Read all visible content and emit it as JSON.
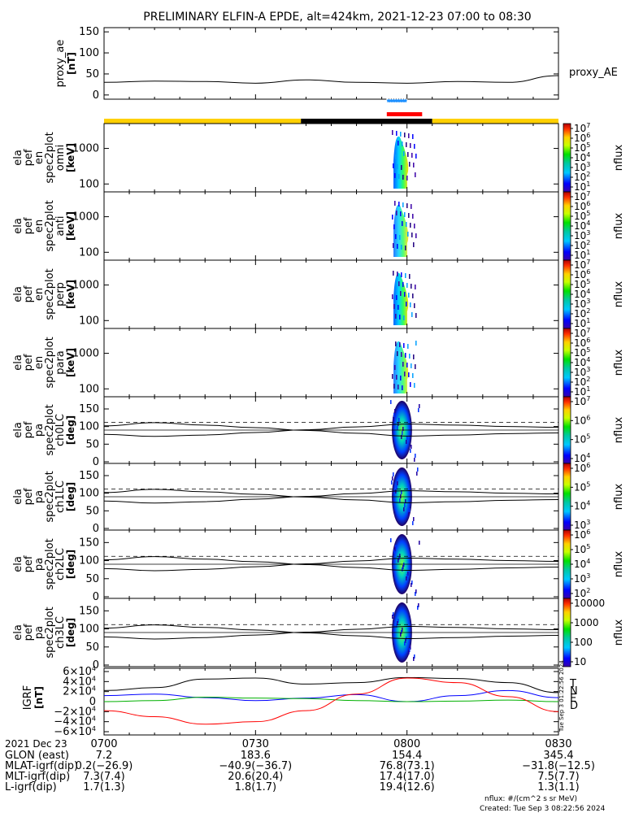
{
  "title": "PRELIMINARY ELFIN-A EPDE, alt=424km, 2021-12-23 07:00 to 08:30",
  "proxy_ae": {
    "ylabel": "proxy_ae",
    "yunit": "[nT]",
    "legend": "proxy_AE",
    "yticks": [
      "150",
      "100",
      "50",
      "0"
    ],
    "ylim": [
      -10,
      160
    ]
  },
  "energy_panels": [
    {
      "ylabel": [
        "ela",
        "pef",
        "en",
        "spec2plot",
        "omni"
      ],
      "yunit": "[keV]",
      "yticks": [
        "1000",
        "100"
      ]
    },
    {
      "ylabel": [
        "ela",
        "pef",
        "en",
        "spec2plot",
        "anti"
      ],
      "yunit": "[keV]",
      "yticks": [
        "1000",
        "100"
      ]
    },
    {
      "ylabel": [
        "ela",
        "pef",
        "en",
        "spec2plot",
        "perp"
      ],
      "yunit": "[keV]",
      "yticks": [
        "1000",
        "100"
      ]
    },
    {
      "ylabel": [
        "ela",
        "pef",
        "en",
        "spec2plot",
        "para"
      ],
      "yunit": "[keV]",
      "yticks": [
        "1000",
        "100"
      ]
    }
  ],
  "pa_panels": [
    {
      "ylabel": [
        "ela",
        "pef",
        "pa",
        "spec2plot",
        "ch0LC"
      ],
      "yunit": "[deg]",
      "yticks": [
        "150",
        "100",
        "50",
        "0"
      ]
    },
    {
      "ylabel": [
        "ela",
        "pef",
        "pa",
        "spec2plot",
        "ch1LC"
      ],
      "yunit": "[deg]",
      "yticks": [
        "150",
        "100",
        "50",
        "0"
      ]
    },
    {
      "ylabel": [
        "ela",
        "pef",
        "pa",
        "spec2plot",
        "ch2LC"
      ],
      "yunit": "[deg]",
      "yticks": [
        "150",
        "100",
        "50",
        "0"
      ]
    },
    {
      "ylabel": [
        "ela",
        "pef",
        "pa",
        "spec2plot",
        "ch3LC"
      ],
      "yunit": "[deg]",
      "yticks": [
        "150",
        "100",
        "50",
        "0"
      ]
    }
  ],
  "colorbars": [
    {
      "label": "nflux",
      "ticks": [
        "10",
        "10",
        "10",
        "10",
        "10",
        "10",
        "10"
      ],
      "exps": [
        "7",
        "6",
        "5",
        "4",
        "3",
        "2",
        "1"
      ]
    },
    {
      "label": "nflux",
      "ticks": [
        "10",
        "10",
        "10",
        "10",
        "10",
        "10",
        "10"
      ],
      "exps": [
        "7",
        "6",
        "5",
        "4",
        "3",
        "2",
        "1"
      ]
    },
    {
      "label": "nflux",
      "ticks": [
        "10",
        "10",
        "10",
        "10",
        "10",
        "10",
        "10"
      ],
      "exps": [
        "7",
        "6",
        "5",
        "4",
        "3",
        "2",
        "1"
      ]
    },
    {
      "label": "nflux",
      "ticks": [
        "10",
        "10",
        "10",
        "10",
        "10",
        "10",
        "10"
      ],
      "exps": [
        "7",
        "6",
        "5",
        "4",
        "3",
        "2",
        "1"
      ]
    },
    {
      "label": "nflux",
      "ticks": [
        "10",
        "10",
        "10",
        "10"
      ],
      "exps": [
        "7",
        "6",
        "5",
        "4"
      ]
    },
    {
      "label": "nflux",
      "ticks": [
        "10",
        "10",
        "10",
        "10"
      ],
      "exps": [
        "6",
        "5",
        "4",
        "3"
      ]
    },
    {
      "label": "nflux",
      "ticks": [
        "10",
        "10",
        "10",
        "10",
        "10"
      ],
      "exps": [
        "6",
        "5",
        "4",
        "3",
        "2"
      ]
    },
    {
      "label": "nflux",
      "ticks": [
        "10000",
        "1000",
        "100",
        "10"
      ],
      "exps": []
    }
  ],
  "igrf": {
    "ylabel": "IGRF",
    "yunit": "[nT]",
    "ytick_mant": [
      "6×10",
      "4×10",
      "2×10",
      "0",
      "−2×10",
      "−4×10",
      "−6×10"
    ],
    "ytick_exp": "4",
    "legend": [
      "T",
      "N",
      "E",
      "D"
    ],
    "legend_colors": [
      "#000000",
      "#0000ff",
      "#00b000",
      "#ff0000"
    ],
    "side_stamp": "Tue Sep  3 01:22:56 2024"
  },
  "xaxis": {
    "label": "2021 Dec 23",
    "ticks": [
      "0700",
      "0730",
      "0800",
      "0830"
    ]
  },
  "ephemeris": [
    {
      "name": "GLON (east)",
      "values": [
        "7.2",
        "183.6",
        "154.4",
        "345.4"
      ]
    },
    {
      "name": "MLAT-igrf(dip)",
      "values": [
        "0.2(−26.9)",
        "−40.9(−36.7)",
        "76.8(73.1)",
        "−31.8(−12.5)"
      ]
    },
    {
      "name": "MLT-igrf(dip)",
      "values": [
        "7.3(7.4)",
        "20.6(20.4)",
        "17.4(17.0)",
        "7.5(7.7)"
      ]
    },
    {
      "name": "L-igrf(dip)",
      "values": [
        "1.7(1.3)",
        "1.8(1.7)",
        "19.4(12.6)",
        "1.3(1.1)"
      ]
    }
  ],
  "footer": {
    "units": "nflux: #/(cm^2 s sr MeV)",
    "created": "Created: Tue Sep  3 08:22:56 2024"
  },
  "colors": {
    "sunlit_bar": "#ffd000",
    "shadow_bar": "#000000",
    "fgs_bar": "#ff0000",
    "epd_bar": "#1e90ff",
    "igrf_T": "#000000",
    "igrf_N": "#0000ff",
    "igrf_E": "#00b000",
    "igrf_D": "#ff0000"
  },
  "chart_data": {
    "type": "line",
    "x_time_range": [
      "07:00",
      "08:30"
    ],
    "proxy_ae_series": {
      "name": "proxy_AE",
      "x_min": [
        0,
        10,
        20,
        30,
        40,
        50,
        60,
        70,
        80,
        90
      ],
      "y_nT": [
        30,
        33,
        32,
        28,
        36,
        30,
        28,
        32,
        30,
        46
      ]
    },
    "bars": {
      "shadow_interval_min": [
        39,
        65
      ],
      "fgs_interval_min": [
        56,
        63
      ],
      "epd_interval_min": [
        56,
        60
      ]
    },
    "loss_cone_min": [
      0,
      10,
      20,
      30,
      40,
      50,
      60,
      70,
      80,
      90
    ],
    "loss_cone_deg": [
      102,
      111,
      104,
      97,
      89,
      81,
      73,
      76,
      80,
      82
    ],
    "anti_loss_cone_deg": [
      78,
      72,
      76,
      83,
      91,
      99,
      107,
      104,
      100,
      98
    ],
    "burst_interval_min": [
      57,
      61
    ],
    "igrf_series": [
      {
        "name": "T",
        "x_min": [
          0,
          10,
          20,
          30,
          40,
          50,
          60,
          70,
          80,
          90
        ],
        "y": [
          22000,
          28000,
          45000,
          47000,
          35000,
          38000,
          48000,
          46000,
          38000,
          18000
        ]
      },
      {
        "name": "N",
        "x_min": [
          0,
          10,
          20,
          30,
          40,
          50,
          60,
          70,
          80,
          90
        ],
        "y": [
          12000,
          15000,
          8000,
          2000,
          7000,
          14000,
          0,
          12000,
          22000,
          8000
        ]
      },
      {
        "name": "E",
        "x_min": [
          0,
          10,
          20,
          30,
          40,
          50,
          60,
          70,
          80,
          90
        ],
        "y": [
          0,
          2000,
          9000,
          7000,
          6000,
          2000,
          0,
          1000,
          3000,
          0
        ]
      },
      {
        "name": "D",
        "x_min": [
          0,
          10,
          20,
          30,
          40,
          50,
          60,
          70,
          80,
          90
        ],
        "y": [
          -18000,
          -30000,
          -45000,
          -40000,
          -18000,
          15000,
          47000,
          38000,
          10000,
          -20000
        ]
      }
    ]
  }
}
